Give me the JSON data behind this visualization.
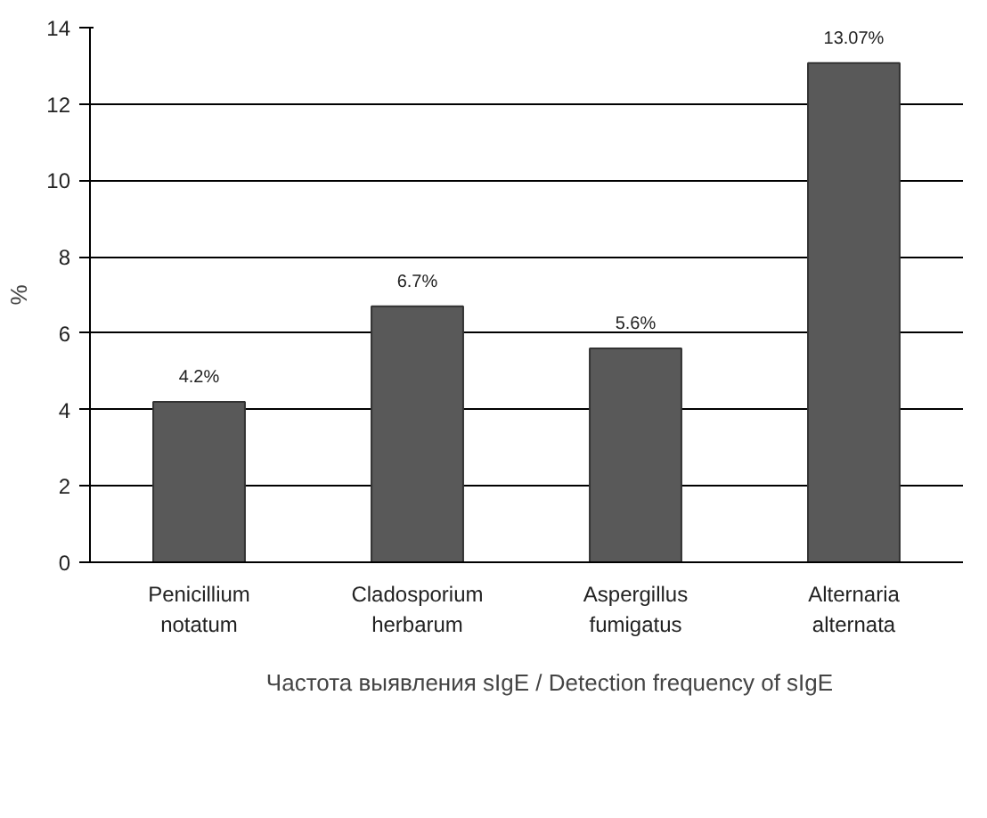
{
  "chart_data": {
    "type": "bar",
    "ylabel": "%",
    "categories": [
      "Penicillium notatum",
      "Cladosporium herbarum",
      "Aspergillus fumigatus",
      "Alternaria alternata"
    ],
    "series": [
      {
        "name": "Частота выявления sIgE / Detection frequency of sIgE",
        "color": "#595959",
        "values": [
          4.2,
          6.7,
          5.6,
          13.07
        ]
      }
    ],
    "value_labels": [
      "4.2%",
      "6.7%",
      "5.6%",
      "13.07%"
    ],
    "ylim": [
      0,
      14
    ],
    "yticks": [
      0,
      2,
      4,
      6,
      8,
      10,
      12,
      14
    ],
    "grid": "y",
    "legend": "bottom"
  }
}
